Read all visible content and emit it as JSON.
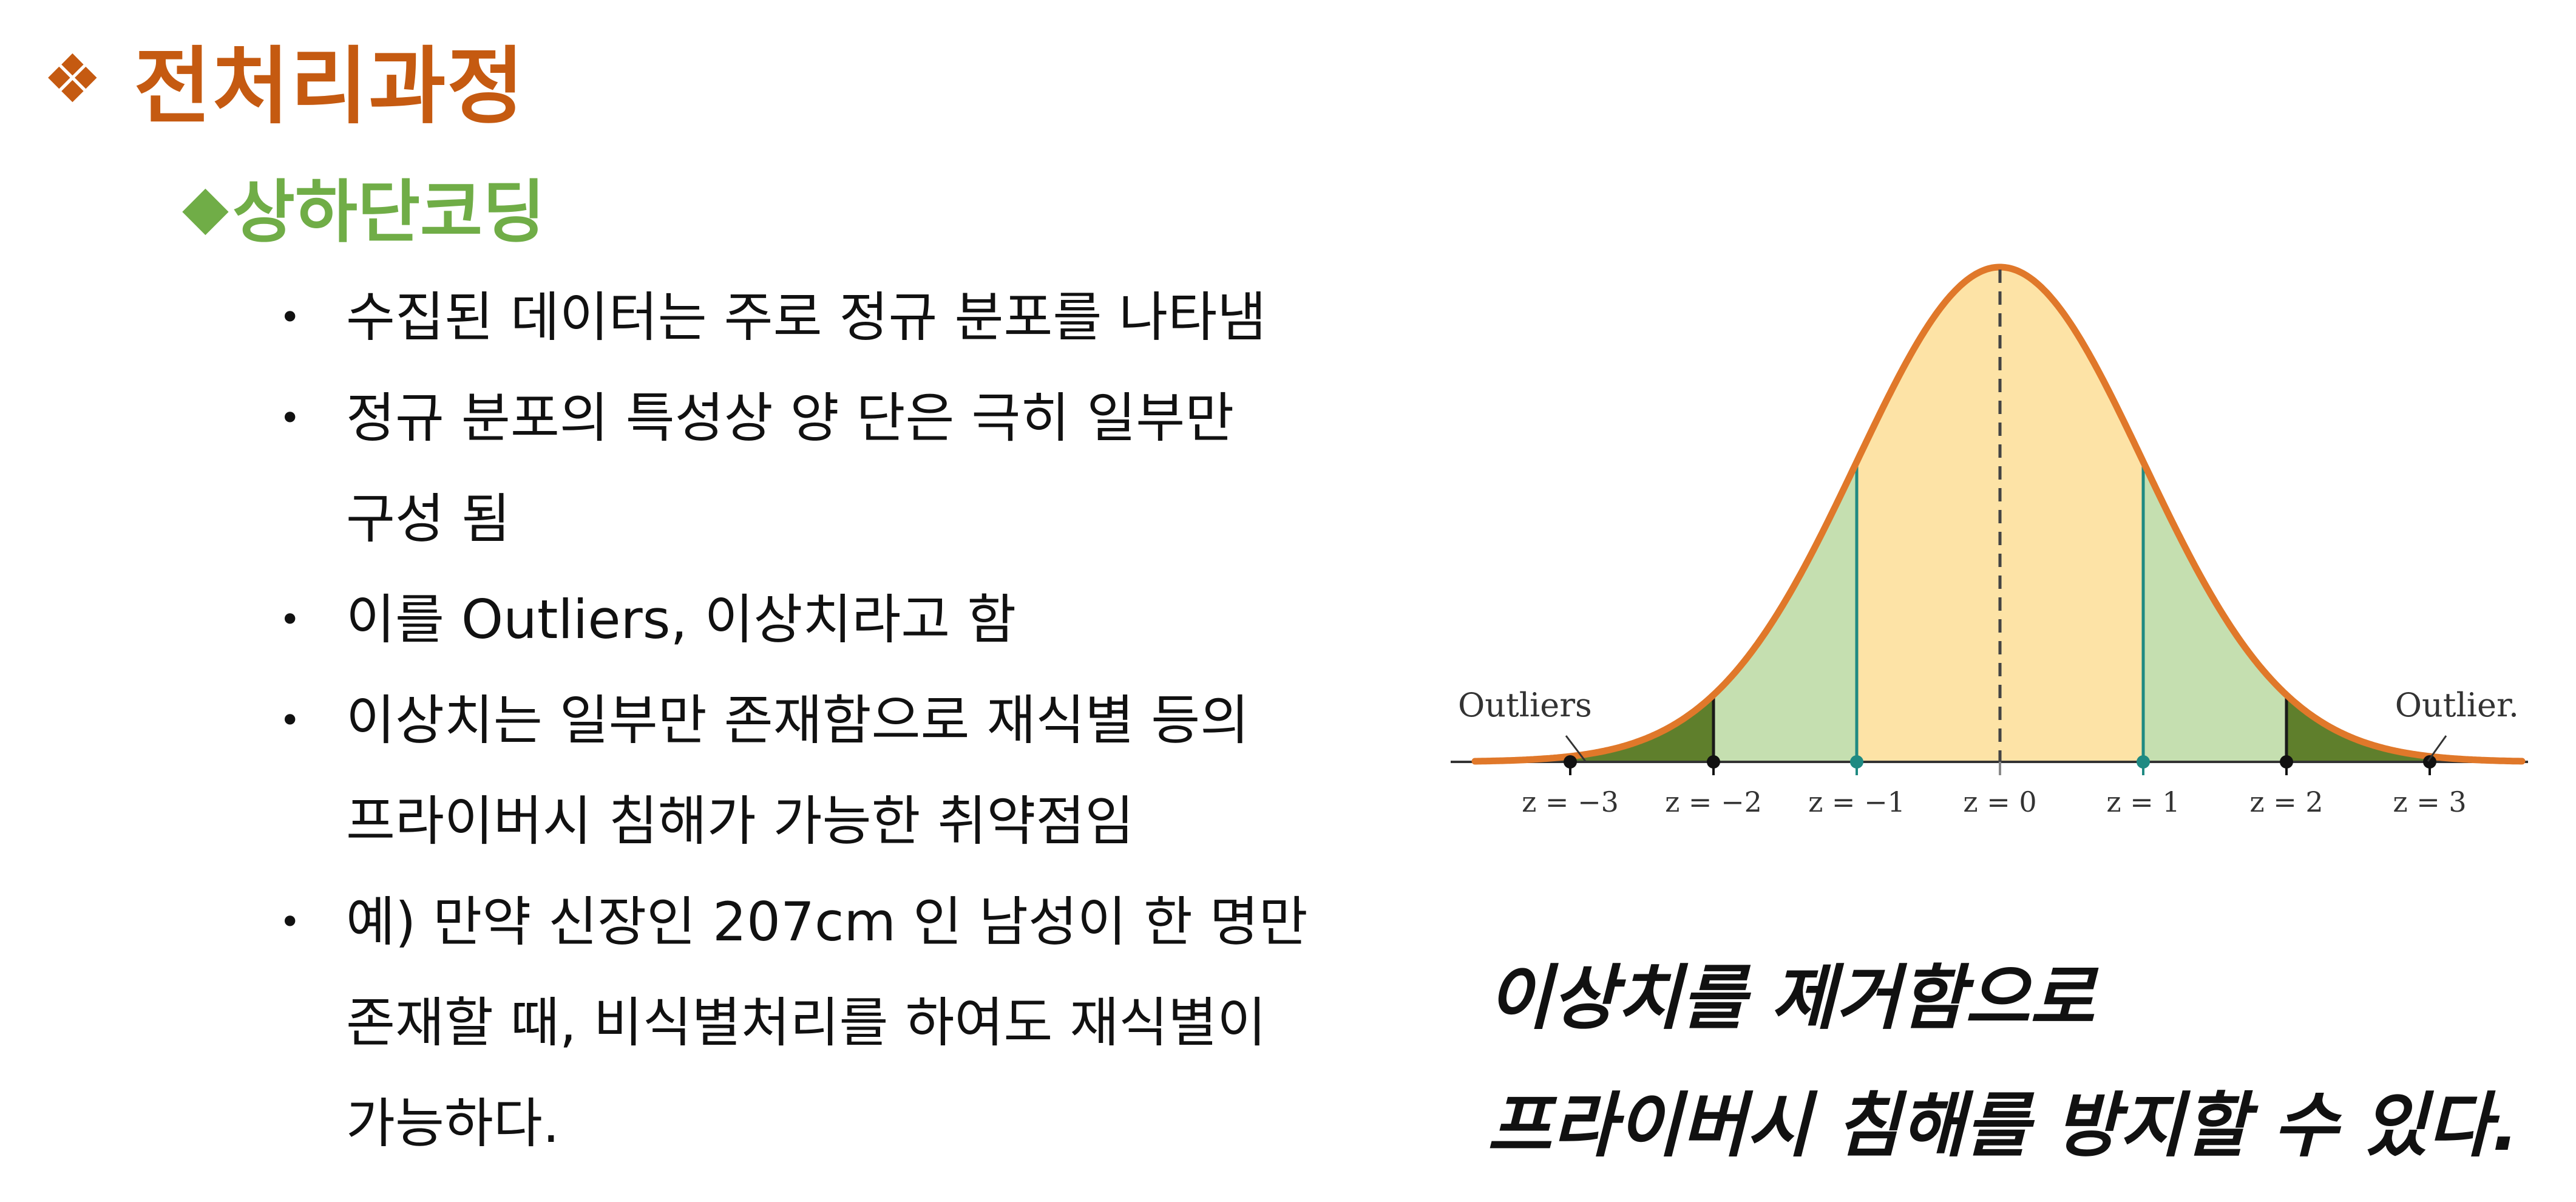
{
  "title": {
    "bullet_glyph": "❖",
    "text": "전처리과정"
  },
  "subtitle": {
    "bullet_glyph": "◆",
    "text": "상하단코딩"
  },
  "bullets": [
    {
      "lines": [
        "수집된 데이터는 주로 정규 분포를 나타냄"
      ]
    },
    {
      "lines": [
        "정규 분포의 특성상 양 단은 극히 일부만",
        "구성 됨"
      ]
    },
    {
      "lines": [
        "이를 Outliers, 이상치라고 함"
      ]
    },
    {
      "lines": [
        "이상치는 일부만 존재함으로 재식별 등의",
        "프라이버시 침해가 가능한 취약점임"
      ]
    },
    {
      "lines": [
        "예) 만약 신장인 207cm 인 남성이 한 명만",
        "존재할 때, 비식별처리를 하여도 재식별이",
        "가능하다."
      ]
    }
  ],
  "figure": {
    "left_label": "Outliers",
    "right_label": "Outlier.",
    "z_labels": [
      "z = −3",
      "z = −2",
      "z = −1",
      "z = 0",
      "z = 1",
      "z = 2",
      "z = 3"
    ],
    "colors": {
      "curve": "#E0782A",
      "center_region": "#FDE3A6",
      "middle_region": "#C5DFB0",
      "tail_region": "#5F7F2C",
      "sd1_line": "#1F8A82",
      "axis": "#333333"
    }
  },
  "callout": {
    "line1": "이상치를 제거함으로",
    "line2": "프라이버시 침해를 방지할 수 있다."
  }
}
